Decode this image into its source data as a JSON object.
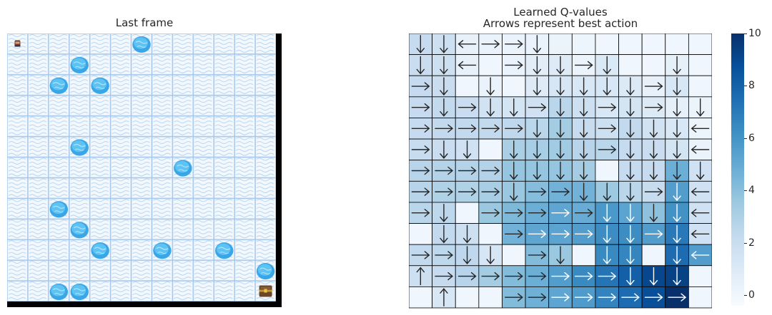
{
  "left_panel": {
    "title": "Last frame",
    "grid_size": 13,
    "player_cell": [
      0,
      0
    ],
    "goal_cell": [
      12,
      12
    ],
    "holes": [
      [
        0,
        6
      ],
      [
        1,
        3
      ],
      [
        2,
        2
      ],
      [
        2,
        4
      ],
      [
        5,
        3
      ],
      [
        6,
        8
      ],
      [
        8,
        2
      ],
      [
        9,
        3
      ],
      [
        10,
        4
      ],
      [
        10,
        7
      ],
      [
        10,
        10
      ],
      [
        11,
        12
      ],
      [
        12,
        2
      ],
      [
        12,
        3
      ]
    ]
  },
  "right_panel": {
    "title_line1": "Learned Q-values",
    "title_line2": "Arrows represent best action",
    "rows": 13,
    "cols": 13,
    "q_values": [
      [
        2.2,
        1.8,
        0.4,
        0.3,
        0.3,
        0.3,
        0.2,
        0.1,
        0,
        0,
        0,
        0,
        0
      ],
      [
        2,
        1.8,
        0.4,
        0,
        0.3,
        0.7,
        0.9,
        0.2,
        1.1,
        0,
        0,
        0.5,
        0
      ],
      [
        2.2,
        2,
        0,
        0.3,
        0,
        0.9,
        1.3,
        1.2,
        1.2,
        1,
        0.4,
        1.2,
        0
      ],
      [
        2.2,
        2.3,
        2,
        1.6,
        1.5,
        1.7,
        2.6,
        1.8,
        1.2,
        1.5,
        1,
        0.6,
        0.2
      ],
      [
        2.2,
        2.3,
        2.3,
        2.3,
        2.4,
        2.6,
        3.3,
        2.1,
        1.8,
        2.3,
        1.6,
        1.2,
        0.1
      ],
      [
        2.1,
        2,
        1.7,
        0,
        3.1,
        3.2,
        3.4,
        2.7,
        2.6,
        2.2,
        2,
        1.5,
        0.3
      ],
      [
        2.7,
        2.8,
        2.8,
        2.8,
        3.7,
        3.7,
        3.7,
        3.3,
        0,
        2.2,
        2.2,
        4.8,
        1.7
      ],
      [
        2.7,
        2.9,
        2.9,
        3.2,
        3.6,
        4.1,
        4.6,
        4.6,
        3.5,
        2.6,
        2.1,
        5.6,
        1.7
      ],
      [
        2.6,
        2.5,
        0,
        3.6,
        4.3,
        4.8,
        5.2,
        4.9,
        5.8,
        5.3,
        3.9,
        6.1,
        1.7
      ],
      [
        0,
        2.3,
        1.8,
        0,
        4.6,
        5.2,
        5.3,
        5.6,
        6.3,
        6.3,
        5.6,
        7.1,
        1.7
      ],
      [
        2.3,
        2.5,
        2.4,
        1.3,
        0,
        4.2,
        3.6,
        0,
        6.4,
        6.6,
        0,
        7.6,
        5.6
      ],
      [
        1.8,
        2.2,
        2.7,
        3.3,
        4.2,
        4.8,
        5.6,
        6.4,
        7.3,
        8.1,
        9.1,
        9.3,
        0
      ],
      [
        0,
        1.2,
        0,
        0,
        4.2,
        4.7,
        5.2,
        5.7,
        6.7,
        7.6,
        8.8,
        10,
        0
      ]
    ],
    "actions": [
      [
        "down",
        "down",
        "left",
        "right",
        "right",
        "down",
        "",
        "",
        "",
        "",
        "",
        "",
        ""
      ],
      [
        "down",
        "down",
        "left",
        "",
        "right",
        "down",
        "down",
        "right",
        "down",
        "",
        "",
        "down",
        ""
      ],
      [
        "right",
        "down",
        "",
        "down",
        "",
        "down",
        "down",
        "down",
        "down",
        "down",
        "right",
        "down",
        ""
      ],
      [
        "right",
        "down",
        "right",
        "down",
        "down",
        "right",
        "down",
        "down",
        "right",
        "down",
        "right",
        "down",
        "down"
      ],
      [
        "right",
        "right",
        "right",
        "right",
        "right",
        "down",
        "down",
        "down",
        "right",
        "down",
        "down",
        "down",
        "left"
      ],
      [
        "right",
        "down",
        "down",
        "",
        "down",
        "down",
        "down",
        "down",
        "right",
        "down",
        "down",
        "down",
        "left"
      ],
      [
        "right",
        "right",
        "right",
        "right",
        "down",
        "down",
        "down",
        "down",
        "",
        "down",
        "down",
        "down",
        "down"
      ],
      [
        "right",
        "right",
        "right",
        "right",
        "down",
        "right",
        "right",
        "down",
        "down",
        "down",
        "right",
        "down",
        "left"
      ],
      [
        "right",
        "down",
        "",
        "right",
        "right",
        "right",
        "right",
        "right",
        "down",
        "down",
        "down",
        "down",
        "left"
      ],
      [
        "",
        "down",
        "down",
        "",
        "right",
        "right",
        "right",
        "right",
        "down",
        "down",
        "right",
        "down",
        "left"
      ],
      [
        "right",
        "right",
        "down",
        "down",
        "",
        "right",
        "down",
        "",
        "down",
        "down",
        "",
        "down",
        "left"
      ],
      [
        "up",
        "right",
        "right",
        "right",
        "right",
        "right",
        "right",
        "right",
        "right",
        "down",
        "down",
        "down",
        ""
      ],
      [
        "",
        "up",
        "",
        "",
        "right",
        "right",
        "right",
        "right",
        "right",
        "right",
        "right",
        "right",
        ""
      ]
    ]
  },
  "colorbar": {
    "min": -0.4,
    "max": 10,
    "ticks": [
      "0",
      "2",
      "4",
      "6",
      "8",
      "10"
    ],
    "colors": [
      "#f7fbff",
      "#deebf7",
      "#c6dbef",
      "#9ecae1",
      "#6baed6",
      "#4292c6",
      "#2171b5",
      "#08519c",
      "#08306b"
    ]
  }
}
